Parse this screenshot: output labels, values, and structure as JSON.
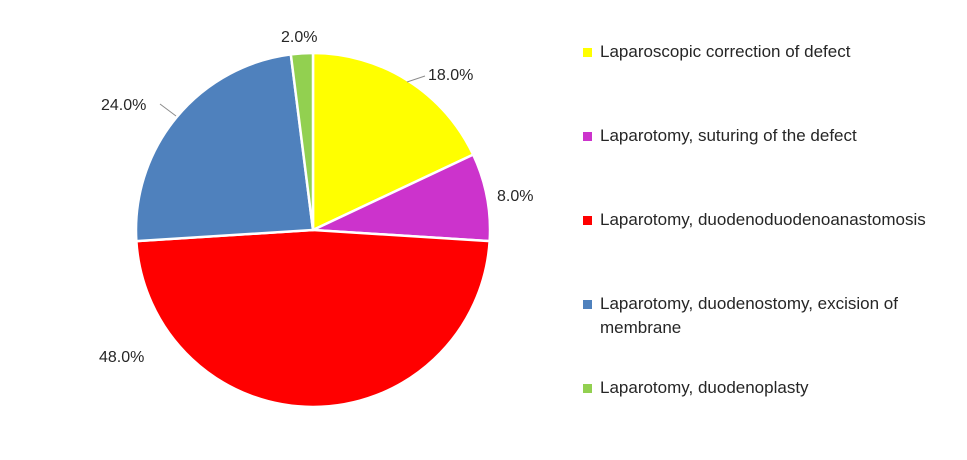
{
  "chart_data": {
    "type": "pie",
    "slices": [
      {
        "label": "Laparoscopic correction of defect",
        "value": 18.0,
        "value_label": "18.0%",
        "color": "#FFFF00"
      },
      {
        "label": "Laparotomy, suturing of the defect",
        "value": 8.0,
        "value_label": "8.0%",
        "color": "#CC33CC"
      },
      {
        "label": "Laparotomy, duodenoduodenoanastomosis",
        "value": 48.0,
        "value_label": "48.0%",
        "color": "#FF0000"
      },
      {
        "label": "Laparotomy, duodenostomy, excision of membrane",
        "value": 24.0,
        "value_label": "24.0%",
        "color": "#4F81BD"
      },
      {
        "label": "Laparotomy, duodenoplasty",
        "value": 2.0,
        "value_label": "2.0%",
        "color": "#92D050"
      }
    ],
    "legend_placement": "right",
    "start_angle": "12 o'clock",
    "direction": "clockwise"
  }
}
